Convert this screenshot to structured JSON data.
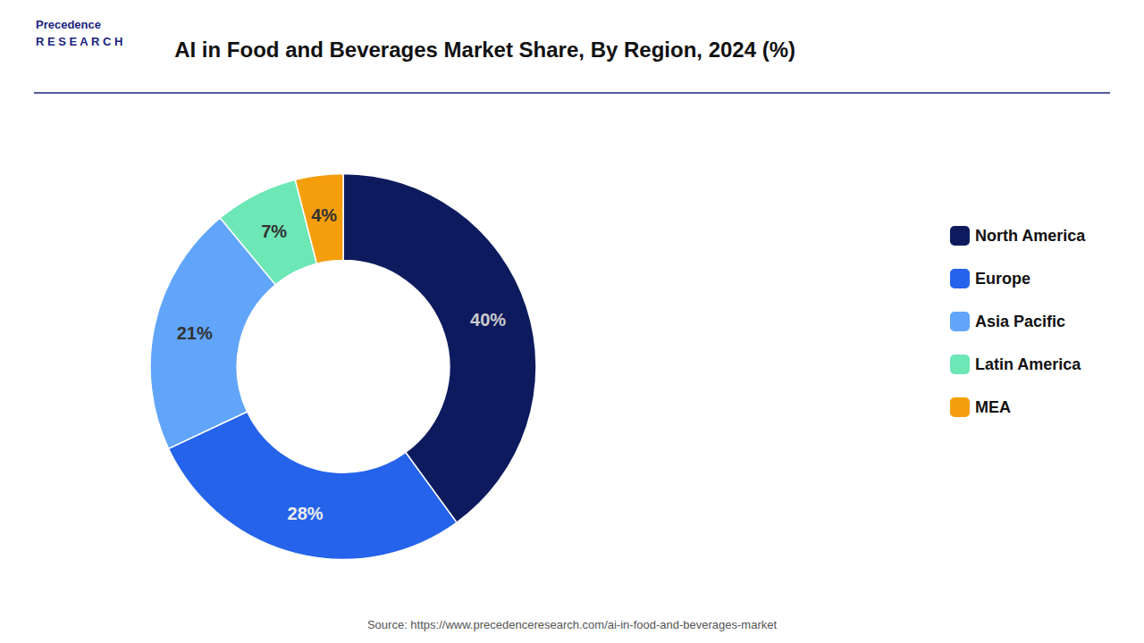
{
  "chart_data": {
    "type": "pie",
    "title": "AI in Food and Beverages Market Share, By Region, 2024 (%)",
    "categories": [
      "North America",
      "Europe",
      "Asia Pacific",
      "Latin America",
      "MEA"
    ],
    "values": [
      40,
      28,
      21,
      7,
      4
    ],
    "value_labels": [
      "40%",
      "28%",
      "21%",
      "7%",
      "4%"
    ],
    "colors": [
      "#0d1b5e",
      "#2563eb",
      "#60a5fa",
      "#6ee7b7",
      "#f59e0b"
    ],
    "data_labels": true,
    "legend": "right",
    "annotations": [
      "Precedence",
      "R E S E A R C H",
      "Source: https://www.precedenceresearch.com/ai-in-food-and-beverages-market"
    ]
  }
}
